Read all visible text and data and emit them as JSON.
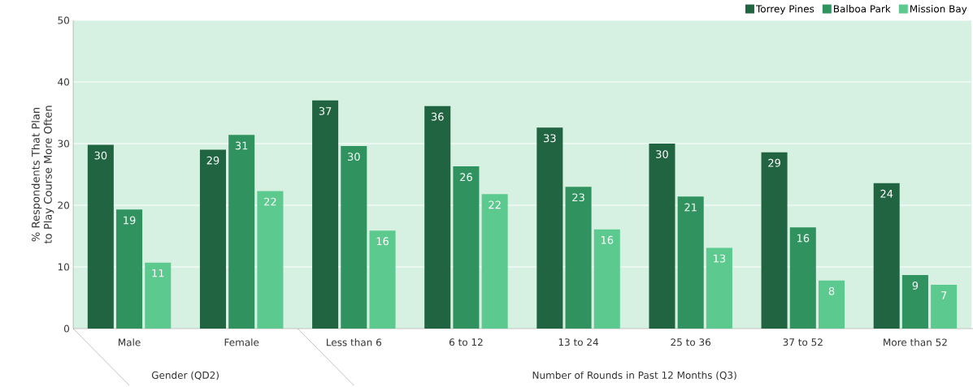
{
  "chart_data": {
    "type": "bar",
    "ylabel": "% Respondents That Plan to Play Course More Often",
    "categories": [
      "Male",
      "Female",
      "Less than 6",
      "6 to 12",
      "13 to 24",
      "25 to 36",
      "37 to 52",
      "More than 52"
    ],
    "series": [
      {
        "name": "Torrey Pines",
        "color": "#216442",
        "values": [
          29.8,
          29,
          37,
          36.1,
          32.6,
          30,
          28.6,
          23.6
        ],
        "value_labels": [
          "30",
          "29",
          "37",
          "36",
          "33",
          "30",
          "29",
          "24"
        ]
      },
      {
        "name": "Balboa Park",
        "color": "#30925f",
        "values": [
          19.3,
          31.4,
          29.6,
          26.3,
          23,
          21.4,
          16.4,
          8.7
        ],
        "value_labels": [
          "19",
          "31",
          "30",
          "26",
          "23",
          "21",
          "16",
          "9"
        ]
      },
      {
        "name": "Mission Bay",
        "color": "#5cc98f",
        "values": [
          10.7,
          22.3,
          15.9,
          21.8,
          16.1,
          13.1,
          7.8,
          7.1
        ],
        "value_labels": [
          "11",
          "22",
          "16",
          "22",
          "16",
          "13",
          "8",
          "7"
        ]
      }
    ],
    "ylim": [
      0,
      50
    ],
    "yticks": [
      0,
      10,
      20,
      30,
      40,
      50
    ],
    "grid": "y",
    "legend": "top right",
    "annotations": [
      "Gender (QD2)",
      "Number of Rounds in Past 12 Months (Q3)"
    ]
  }
}
